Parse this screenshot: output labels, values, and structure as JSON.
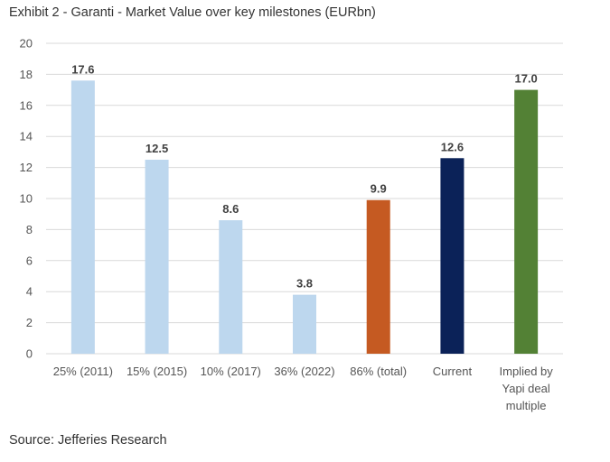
{
  "title": "Exhibit 2 - Garanti - Market Value over key milestones (EURbn)",
  "source": "Source: Jefferies Research",
  "chart_data": {
    "type": "bar",
    "title": "Exhibit 2 - Garanti - Market Value over key milestones (EURbn)",
    "xlabel": "",
    "ylabel": "",
    "ylim": [
      0,
      20
    ],
    "yticks": [
      0,
      2,
      4,
      6,
      8,
      10,
      12,
      14,
      16,
      18,
      20
    ],
    "grid": true,
    "legend": "none",
    "categories": [
      [
        "25% (2011)"
      ],
      [
        "15% (2015)"
      ],
      [
        "10% (2017)"
      ],
      [
        "36% (2022)"
      ],
      [
        "86% (total)"
      ],
      [
        "Current"
      ],
      [
        "Implied by",
        "Yapi deal",
        "multiple"
      ]
    ],
    "values": [
      17.6,
      12.5,
      8.6,
      3.8,
      9.9,
      12.6,
      17.0
    ],
    "data_labels": [
      "17.6",
      "12.5",
      "8.6",
      "3.8",
      "9.9",
      "12.6",
      "17.0"
    ],
    "colors": [
      "#bdd7ee",
      "#bdd7ee",
      "#bdd7ee",
      "#bdd7ee",
      "#c55a22",
      "#0b2258",
      "#538135"
    ]
  }
}
